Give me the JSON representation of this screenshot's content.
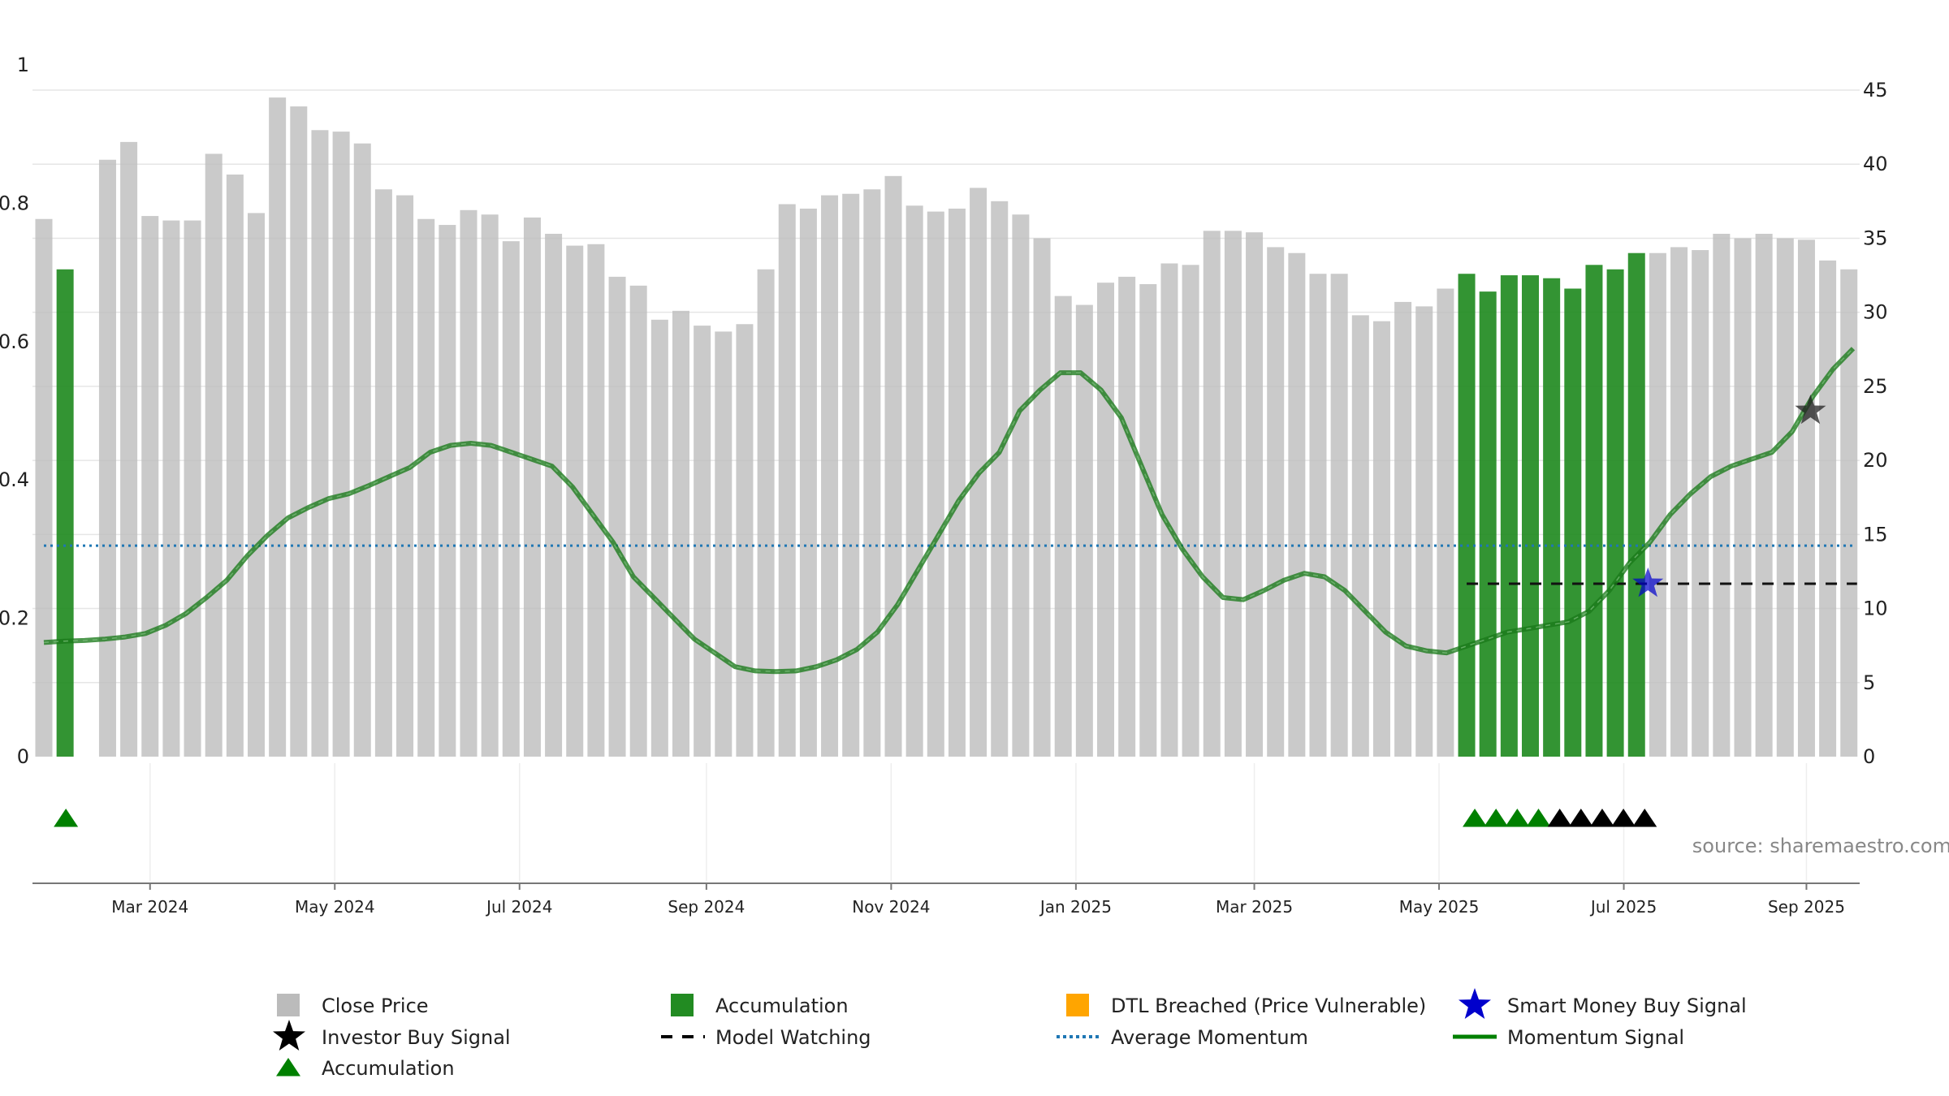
{
  "chart_data": {
    "type": "bar",
    "source_note": "source: sharemaestro.com",
    "left_axis": {
      "ylim": [
        0,
        1
      ],
      "ticks": [
        "0",
        "0.2",
        "0.4",
        "0.6",
        "0.8",
        "1"
      ]
    },
    "right_axis": {
      "ylim": [
        0,
        46.7
      ],
      "ticks": [
        "0",
        "5",
        "10",
        "15",
        "20",
        "25",
        "30",
        "35",
        "40",
        "45"
      ]
    },
    "x_ticks": [
      "Mar 2024",
      "May 2024",
      "Jul 2024",
      "Sep 2024",
      "Nov 2024",
      "Jan 2025",
      "Mar 2025",
      "May 2025",
      "Jul 2025",
      "Sep 2025"
    ],
    "series": [
      {
        "name": "Close Price",
        "values": [
          36.3,
          32.9,
          null,
          40.3,
          41.5,
          36.5,
          36.2,
          36.2,
          40.7,
          39.3,
          36.7,
          44.5,
          43.9,
          42.3,
          42.2,
          41.4,
          38.3,
          37.9,
          36.3,
          35.9,
          36.9,
          36.6,
          34.8,
          36.4,
          35.3,
          34.5,
          34.6,
          32.4,
          31.8,
          29.5,
          30.1,
          29.1,
          28.7,
          29.2,
          32.9,
          37.3,
          37.0,
          37.9,
          38.0,
          38.3,
          39.2,
          37.2,
          36.8,
          37.0,
          38.4,
          37.5,
          36.6,
          35.0,
          31.1,
          30.5,
          32.0,
          32.4,
          31.9,
          33.3,
          33.2,
          35.5,
          35.5,
          35.4,
          34.4,
          34.0,
          32.6,
          32.6,
          29.8,
          29.4,
          30.7,
          30.4,
          31.6,
          32.6,
          31.4,
          32.5,
          32.5,
          32.3,
          31.6,
          33.2,
          32.9,
          34.0,
          34.0,
          34.4,
          34.2,
          35.3,
          35.0,
          35.3,
          35.0,
          34.9,
          33.5,
          32.9
        ]
      },
      {
        "name": "Momentum Signal",
        "values": [
          0.165,
          0.167,
          0.168,
          0.17,
          0.173,
          0.178,
          0.19,
          0.207,
          0.23,
          0.255,
          0.29,
          0.32,
          0.345,
          0.36,
          0.373,
          0.38,
          0.392,
          0.405,
          0.418,
          0.44,
          0.45,
          0.453,
          0.45,
          0.44,
          0.43,
          0.42,
          0.39,
          0.35,
          0.31,
          0.26,
          0.23,
          0.2,
          0.17,
          0.15,
          0.13,
          0.124,
          0.123,
          0.124,
          0.13,
          0.14,
          0.155,
          0.18,
          0.22,
          0.27,
          0.32,
          0.37,
          0.41,
          0.44,
          0.5,
          0.53,
          0.555,
          0.555,
          0.53,
          0.49,
          0.42,
          0.35,
          0.3,
          0.26,
          0.23,
          0.227,
          0.24,
          0.255,
          0.265,
          0.26,
          0.24,
          0.21,
          0.18,
          0.16,
          0.153,
          0.15,
          0.16,
          0.17,
          0.18,
          0.185,
          0.19,
          0.195,
          0.21,
          0.24,
          0.28,
          0.31,
          0.35,
          0.38,
          0.405,
          0.42,
          0.43,
          0.44,
          0.47,
          0.52,
          0.56,
          0.59
        ]
      },
      {
        "name": "Average Momentum",
        "value": 0.305
      },
      {
        "name": "Model Watching",
        "value": 0.25,
        "from_index": 67,
        "to_index": 85
      }
    ],
    "accumulation_bar_indices": [
      1,
      67,
      68,
      69,
      70,
      71,
      72,
      73,
      74,
      75
    ],
    "accumulation_triangles": [
      1,
      67,
      68,
      69,
      70
    ],
    "black_triangles": [
      71,
      72,
      73,
      74,
      75
    ],
    "smart_money_buy_signal": {
      "index": 75,
      "value": 0.25
    },
    "investor_buy_signal": {
      "index": 83,
      "value": 0.5
    },
    "legend": [
      {
        "label": "Close Price",
        "marker": "square",
        "color": "#bbbbbb"
      },
      {
        "label": "Accumulation",
        "marker": "square",
        "color": "#228b22"
      },
      {
        "label": "DTL Breached (Price Vulnerable)",
        "marker": "square",
        "color": "#ffa500"
      },
      {
        "label": "Smart Money Buy Signal",
        "marker": "star",
        "color": "#0000cc"
      },
      {
        "label": "Investor Buy Signal",
        "marker": "star",
        "color": "#000000"
      },
      {
        "label": "Model Watching",
        "marker": "dash",
        "color": "#000000"
      },
      {
        "label": "Average Momentum",
        "marker": "dot",
        "color": "#1f77b4"
      },
      {
        "label": "Momentum Signal",
        "marker": "line",
        "color": "#008000"
      },
      {
        "label": "Accumulation",
        "marker": "triangle",
        "color": "#008000"
      }
    ]
  }
}
